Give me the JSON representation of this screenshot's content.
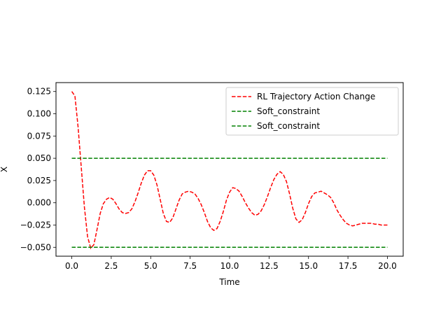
{
  "chart_data": {
    "type": "line",
    "title": "",
    "xlabel": "Time",
    "ylabel": "X",
    "xlim": [
      -1.0,
      21.0
    ],
    "ylim": [
      -0.06,
      0.135
    ],
    "xticks": [
      0.0,
      2.5,
      5.0,
      7.5,
      10.0,
      12.5,
      15.0,
      17.5,
      20.0
    ],
    "xtick_labels": [
      "0.0",
      "2.5",
      "5.0",
      "7.5",
      "10.0",
      "12.5",
      "15.0",
      "17.5",
      "20.0"
    ],
    "yticks": [
      -0.05,
      -0.025,
      0.0,
      0.025,
      0.05,
      0.075,
      0.1,
      0.125
    ],
    "ytick_labels": [
      "−0.050",
      "−0.025",
      "0.000",
      "0.025",
      "0.050",
      "0.075",
      "0.100",
      "0.125"
    ],
    "grid": false,
    "legend_position": "top-right",
    "series": [
      {
        "name": "RL Trajectory Action Change",
        "color": "#ff0000",
        "style": "dashed",
        "x": [
          0.0,
          0.2,
          0.4,
          0.6,
          0.8,
          1.0,
          1.2,
          1.4,
          1.6,
          1.8,
          2.0,
          2.2,
          2.4,
          2.6,
          2.8,
          3.0,
          3.2,
          3.4,
          3.6,
          3.8,
          4.0,
          4.2,
          4.4,
          4.6,
          4.8,
          5.0,
          5.2,
          5.4,
          5.6,
          5.8,
          6.0,
          6.2,
          6.4,
          6.6,
          6.8,
          7.0,
          7.2,
          7.4,
          7.6,
          7.8,
          8.0,
          8.2,
          8.4,
          8.6,
          8.8,
          9.0,
          9.2,
          9.4,
          9.6,
          9.8,
          10.0,
          10.2,
          10.4,
          10.6,
          10.8,
          11.0,
          11.2,
          11.4,
          11.6,
          11.8,
          12.0,
          12.2,
          12.4,
          12.6,
          12.8,
          13.0,
          13.2,
          13.4,
          13.6,
          13.8,
          14.0,
          14.2,
          14.4,
          14.6,
          14.8,
          15.0,
          15.2,
          15.4,
          15.6,
          15.8,
          16.0,
          16.2,
          16.4,
          16.6,
          16.8,
          17.0,
          17.2,
          17.4,
          17.6,
          17.8,
          18.0,
          18.2,
          18.4,
          18.6,
          18.8,
          19.0,
          19.2,
          19.4,
          19.6,
          19.8,
          20.0
        ],
        "y": [
          0.125,
          0.12,
          0.085,
          0.04,
          -0.005,
          -0.038,
          -0.051,
          -0.047,
          -0.03,
          -0.012,
          -0.001,
          0.004,
          0.006,
          0.004,
          -0.001,
          -0.007,
          -0.011,
          -0.012,
          -0.011,
          -0.007,
          0.001,
          0.011,
          0.022,
          0.031,
          0.036,
          0.036,
          0.031,
          0.02,
          0.004,
          -0.012,
          -0.021,
          -0.022,
          -0.017,
          -0.007,
          0.003,
          0.01,
          0.012,
          0.013,
          0.012,
          0.01,
          0.005,
          -0.002,
          -0.011,
          -0.021,
          -0.028,
          -0.031,
          -0.029,
          -0.021,
          -0.01,
          0.003,
          0.012,
          0.017,
          0.016,
          0.013,
          0.007,
          0.0,
          -0.006,
          -0.011,
          -0.014,
          -0.013,
          -0.009,
          -0.002,
          0.007,
          0.017,
          0.026,
          0.032,
          0.035,
          0.032,
          0.024,
          0.01,
          -0.006,
          -0.018,
          -0.022,
          -0.019,
          -0.011,
          -0.001,
          0.007,
          0.011,
          0.012,
          0.013,
          0.011,
          0.009,
          0.006,
          0.0,
          -0.008,
          -0.014,
          -0.019,
          -0.023,
          -0.025,
          -0.026,
          -0.025,
          -0.024,
          -0.023,
          -0.023,
          -0.023,
          -0.023,
          -0.024,
          -0.024,
          -0.025,
          -0.025,
          -0.025
        ]
      },
      {
        "name": "Soft_constraint",
        "color": "#008000",
        "style": "dashed",
        "x": [
          0.0,
          20.0
        ],
        "y": [
          0.05,
          0.05
        ]
      },
      {
        "name": "Soft_constraint",
        "color": "#008000",
        "style": "dashed",
        "x": [
          0.0,
          20.0
        ],
        "y": [
          -0.05,
          -0.05
        ]
      }
    ]
  }
}
